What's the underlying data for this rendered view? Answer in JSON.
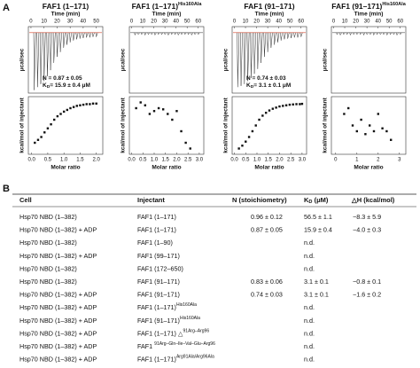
{
  "panel_labels": [
    "A",
    "B"
  ],
  "chart_data": [
    {
      "type": "itc",
      "title": "FAF1 (1–171)",
      "top_xlabel": "Time (min)",
      "top_ylabel": "μcal/sec",
      "xlabel": "Molar ratio",
      "ylabel": "kcal/mol of injectant",
      "baseline_color": "#d9452b",
      "raw": {
        "x": [
          2.5,
          5,
          7.5,
          10,
          12.5,
          15,
          17.5,
          20,
          22.5,
          25,
          27.5,
          30,
          32.5,
          35,
          37.5,
          40,
          42.5,
          45,
          47.5,
          50
        ],
        "values": [
          -0.95,
          -0.9,
          -0.85,
          -0.8,
          -0.72,
          -0.62,
          -0.5,
          -0.4,
          -0.32,
          -0.25,
          -0.2,
          -0.16,
          -0.13,
          -0.11,
          -0.1,
          -0.09,
          -0.08,
          -0.08,
          -0.07,
          -0.07
        ],
        "xlim": [
          -2,
          55
        ],
        "xticks": [
          0,
          10,
          20,
          30,
          40,
          50
        ],
        "ylim": [
          -1,
          0.1
        ]
      },
      "x": [
        0.1,
        0.2,
        0.3,
        0.4,
        0.5,
        0.6,
        0.7,
        0.8,
        0.9,
        1.0,
        1.1,
        1.2,
        1.3,
        1.4,
        1.5,
        1.6,
        1.7,
        1.8,
        1.9,
        2.0
      ],
      "values": [
        -8,
        -7.5,
        -7,
        -6.2,
        -5.5,
        -4.8,
        -4,
        -3.4,
        -3,
        -2.6,
        -2.3,
        -2,
        -1.8,
        -1.6,
        -1.5,
        -1.4,
        -1.3,
        -1.3,
        -1.2,
        -1.2
      ],
      "xlim": [
        -0.1,
        2.2
      ],
      "xticks": [
        {
          "value": 0,
          "label": "0.0"
        },
        0.5,
        {
          "value": 1,
          "label": "1.0"
        },
        1.5,
        {
          "value": 2,
          "label": "2.0"
        }
      ],
      "ylim": [
        -10,
        0
      ],
      "annotations": [
        {
          "base": "N = 0.87 ± 0.05"
        },
        {
          "base": "K",
          "sub": "D",
          "rest": "= 15.9 ± 0.4 μM"
        }
      ]
    },
    {
      "type": "itc",
      "title": "FAF1 (1–171)",
      "title_sup": "His160Ala",
      "top_xlabel": "Time (min)",
      "top_ylabel": "μcal/sec",
      "xlabel": "Molar ratio",
      "ylabel": "kcal/mol of injectant",
      "raw": {
        "x": [
          3,
          6,
          9,
          12,
          15,
          18,
          21,
          24,
          27,
          30,
          33,
          36,
          39,
          42,
          45,
          48,
          51,
          54,
          57,
          60
        ],
        "values": [
          -0.04,
          -0.03,
          -0.03,
          -0.04,
          -0.03,
          -0.03,
          -0.04,
          -0.03,
          -0.03,
          -0.03,
          -0.04,
          -0.03,
          -0.03,
          -0.04,
          -0.03,
          -0.03,
          -0.03,
          -0.04,
          -0.03,
          -0.03
        ],
        "xlim": [
          -2,
          65
        ],
        "xticks": [
          0,
          10,
          20,
          30,
          40,
          50,
          60
        ],
        "ylim": [
          -1,
          0.1
        ]
      },
      "x": [
        0.2,
        0.4,
        0.6,
        0.8,
        1.0,
        1.2,
        1.4,
        1.6,
        1.8,
        2.0,
        2.2,
        2.4,
        2.6
      ],
      "values": [
        -2,
        -1,
        -1.5,
        -3,
        -2.5,
        -2,
        -2.2,
        -3,
        -4,
        -2.5,
        -6,
        -8,
        -9
      ],
      "xlim": [
        -0.1,
        3.2
      ],
      "xticks": [
        {
          "value": 0,
          "label": "0.0"
        },
        0.5,
        {
          "value": 1,
          "label": "1.0"
        },
        1.5,
        {
          "value": 2,
          "label": "2.0"
        },
        2.5,
        {
          "value": 3,
          "label": "3.0"
        }
      ],
      "ylim": [
        -10,
        0
      ]
    },
    {
      "type": "itc",
      "title": "FAF1 (91–171)",
      "top_xlabel": "Time (min)",
      "top_ylabel": "μcal/sec",
      "xlabel": "Molar ratio",
      "ylabel": "kcal/mol of injectant",
      "baseline_color": "#d9452b",
      "raw": {
        "x": [
          3,
          6,
          9,
          12,
          15,
          18,
          21,
          24,
          27,
          30,
          33,
          36,
          39,
          42,
          45,
          48,
          51,
          54,
          57,
          60
        ],
        "values": [
          -0.9,
          -0.88,
          -0.85,
          -0.8,
          -0.75,
          -0.68,
          -0.6,
          -0.5,
          -0.4,
          -0.32,
          -0.25,
          -0.2,
          -0.16,
          -0.13,
          -0.11,
          -0.1,
          -0.09,
          -0.08,
          -0.08,
          -0.07
        ],
        "xlim": [
          -2,
          65
        ],
        "xticks": [
          0,
          10,
          20,
          30,
          40,
          50,
          60
        ],
        "ylim": [
          -1,
          0.1
        ]
      },
      "x": [
        0.2,
        0.35,
        0.5,
        0.65,
        0.8,
        0.95,
        1.1,
        1.25,
        1.4,
        1.55,
        1.7,
        1.85,
        2.0,
        2.15,
        2.3,
        2.45,
        2.6,
        2.75,
        2.9,
        3.0
      ],
      "values": [
        -9,
        -8.5,
        -7.8,
        -7,
        -6,
        -5,
        -4,
        -3.3,
        -2.8,
        -2.4,
        -2.1,
        -1.9,
        -1.7,
        -1.6,
        -1.5,
        -1.4,
        -1.35,
        -1.3,
        -1.3,
        -1.25
      ],
      "xlim": [
        -0.1,
        3.2
      ],
      "xticks": [
        {
          "value": 0,
          "label": "0.0"
        },
        0.5,
        {
          "value": 1,
          "label": "1.0"
        },
        1.5,
        {
          "value": 2,
          "label": "2.0"
        },
        2.5,
        {
          "value": 3,
          "label": "3.0"
        }
      ],
      "ylim": [
        -10,
        0
      ],
      "annotations": [
        {
          "base": "N = 0.74 ± 0.03"
        },
        {
          "base": "K",
          "sub": "D",
          "rest": "= 3.1 ± 0.1 μM"
        }
      ]
    },
    {
      "type": "itc",
      "title": "FAF1 (91–171)",
      "title_sup": "His160Ala",
      "top_xlabel": "Time (min)",
      "top_ylabel": "μcal/sec",
      "xlabel": "Molar ratio",
      "ylabel": "kcal/mol of injectant",
      "raw": {
        "x": [
          3,
          6,
          9,
          12,
          15,
          18,
          21,
          24,
          27,
          30,
          33,
          36,
          39,
          42,
          45,
          48,
          51,
          54,
          57,
          60
        ],
        "values": [
          -0.03,
          -0.04,
          -0.03,
          -0.03,
          -0.04,
          -0.03,
          -0.03,
          -0.03,
          -0.04,
          -0.03,
          -0.03,
          -0.04,
          -0.03,
          -0.03,
          -0.03,
          -0.04,
          -0.03,
          -0.03,
          -0.04,
          -0.03
        ],
        "xlim": [
          -2,
          65
        ],
        "xticks": [
          0,
          10,
          20,
          30,
          40,
          50,
          60
        ],
        "ylim": [
          -1,
          0.1
        ]
      },
      "x": [
        0.4,
        0.6,
        0.8,
        1.0,
        1.2,
        1.4,
        1.6,
        1.8,
        2.0,
        2.2,
        2.4,
        2.6
      ],
      "values": [
        -3,
        -2,
        -5,
        -6,
        -4,
        -6.5,
        -5,
        -6,
        -3,
        -5.5,
        -6,
        -7.5
      ],
      "xlim": [
        -0.2,
        3.3
      ],
      "xticks": [
        0,
        1,
        2,
        3
      ],
      "ylim": [
        -10,
        0
      ]
    }
  ],
  "table": {
    "header": [
      {
        "base": "Cell"
      },
      {
        "base": "Injectant"
      },
      {
        "base": "N (stoichiometry)"
      },
      {
        "base": "K",
        "sub": "D",
        "rest": " (μM)"
      },
      {
        "base": "△H (kcal/mol)"
      }
    ],
    "rows": [
      [
        {
          "base": "Hsp70 NBD (1–382)"
        },
        {
          "base": "FAF1 (1–171)"
        },
        {
          "base": "0.96 ± 0.12"
        },
        {
          "base": "56.5 ± 1.1"
        },
        {
          "base": "−8.3 ± 5.9"
        }
      ],
      [
        {
          "base": "Hsp70 NBD (1–382) + ADP"
        },
        {
          "base": "FAF1 (1–171)"
        },
        {
          "base": "0.87 ± 0.05"
        },
        {
          "base": "15.9 ± 0.4"
        },
        {
          "base": "−4.0 ± 0.3"
        }
      ],
      [
        {
          "base": "Hsp70 NBD (1–382)"
        },
        {
          "base": "FAF1 (1–90)"
        },
        null,
        {
          "base": "n.d."
        },
        null
      ],
      [
        {
          "base": "Hsp70 NBD (1–382) + ADP"
        },
        {
          "base": "FAF1 (99–171)"
        },
        null,
        {
          "base": "n.d."
        },
        null
      ],
      [
        {
          "base": "Hsp70 NBD (1–382)"
        },
        {
          "base": "FAF1 (172–650)"
        },
        null,
        {
          "base": "n.d."
        },
        null
      ],
      [
        {
          "base": "Hsp70 NBD (1–382)"
        },
        {
          "base": "FAF1 (91–171)"
        },
        {
          "base": "0.83 ± 0.06"
        },
        {
          "base": "3.1 ± 0.1"
        },
        {
          "base": "−0.8 ± 0.1"
        }
      ],
      [
        {
          "base": "Hsp70 NBD (1–382) + ADP"
        },
        {
          "base": "FAF1 (91–171)"
        },
        {
          "base": "0.74 ± 0.03"
        },
        {
          "base": "3.1 ± 0.1"
        },
        {
          "base": "−1.6 ± 0.2"
        }
      ],
      [
        {
          "base": "Hsp70 NBD (1–382) + ADP"
        },
        {
          "base": "FAF1 (1–171)",
          "sup": "His160Ala"
        },
        null,
        {
          "base": "n.d."
        },
        null
      ],
      [
        {
          "base": "Hsp70 NBD (1–382) + ADP"
        },
        {
          "base": "FAF1 (91–171)",
          "sup": "His160Ala"
        },
        null,
        {
          "base": "n.d."
        },
        null
      ],
      [
        {
          "base": "Hsp70 NBD (1–382) + ADP"
        },
        {
          "base": "FAF1 (1–171) △",
          "sup": "91Arg–Arg96"
        },
        null,
        {
          "base": "n.d."
        },
        null
      ],
      [
        {
          "base": "Hsp70 NBD (1–382) + ADP"
        },
        {
          "base": "FAF1 ",
          "sup": "91Arg–Gln–Ile–Val–Glu–Arg96"
        },
        null,
        {
          "base": "n.d."
        },
        null
      ],
      [
        {
          "base": "Hsp70 NBD (1–382) + ADP"
        },
        {
          "base": "FAF1 (1–171)",
          "sup": "Arg91Ala/Arg96Ala"
        },
        null,
        {
          "base": "n.d."
        },
        null
      ]
    ]
  }
}
